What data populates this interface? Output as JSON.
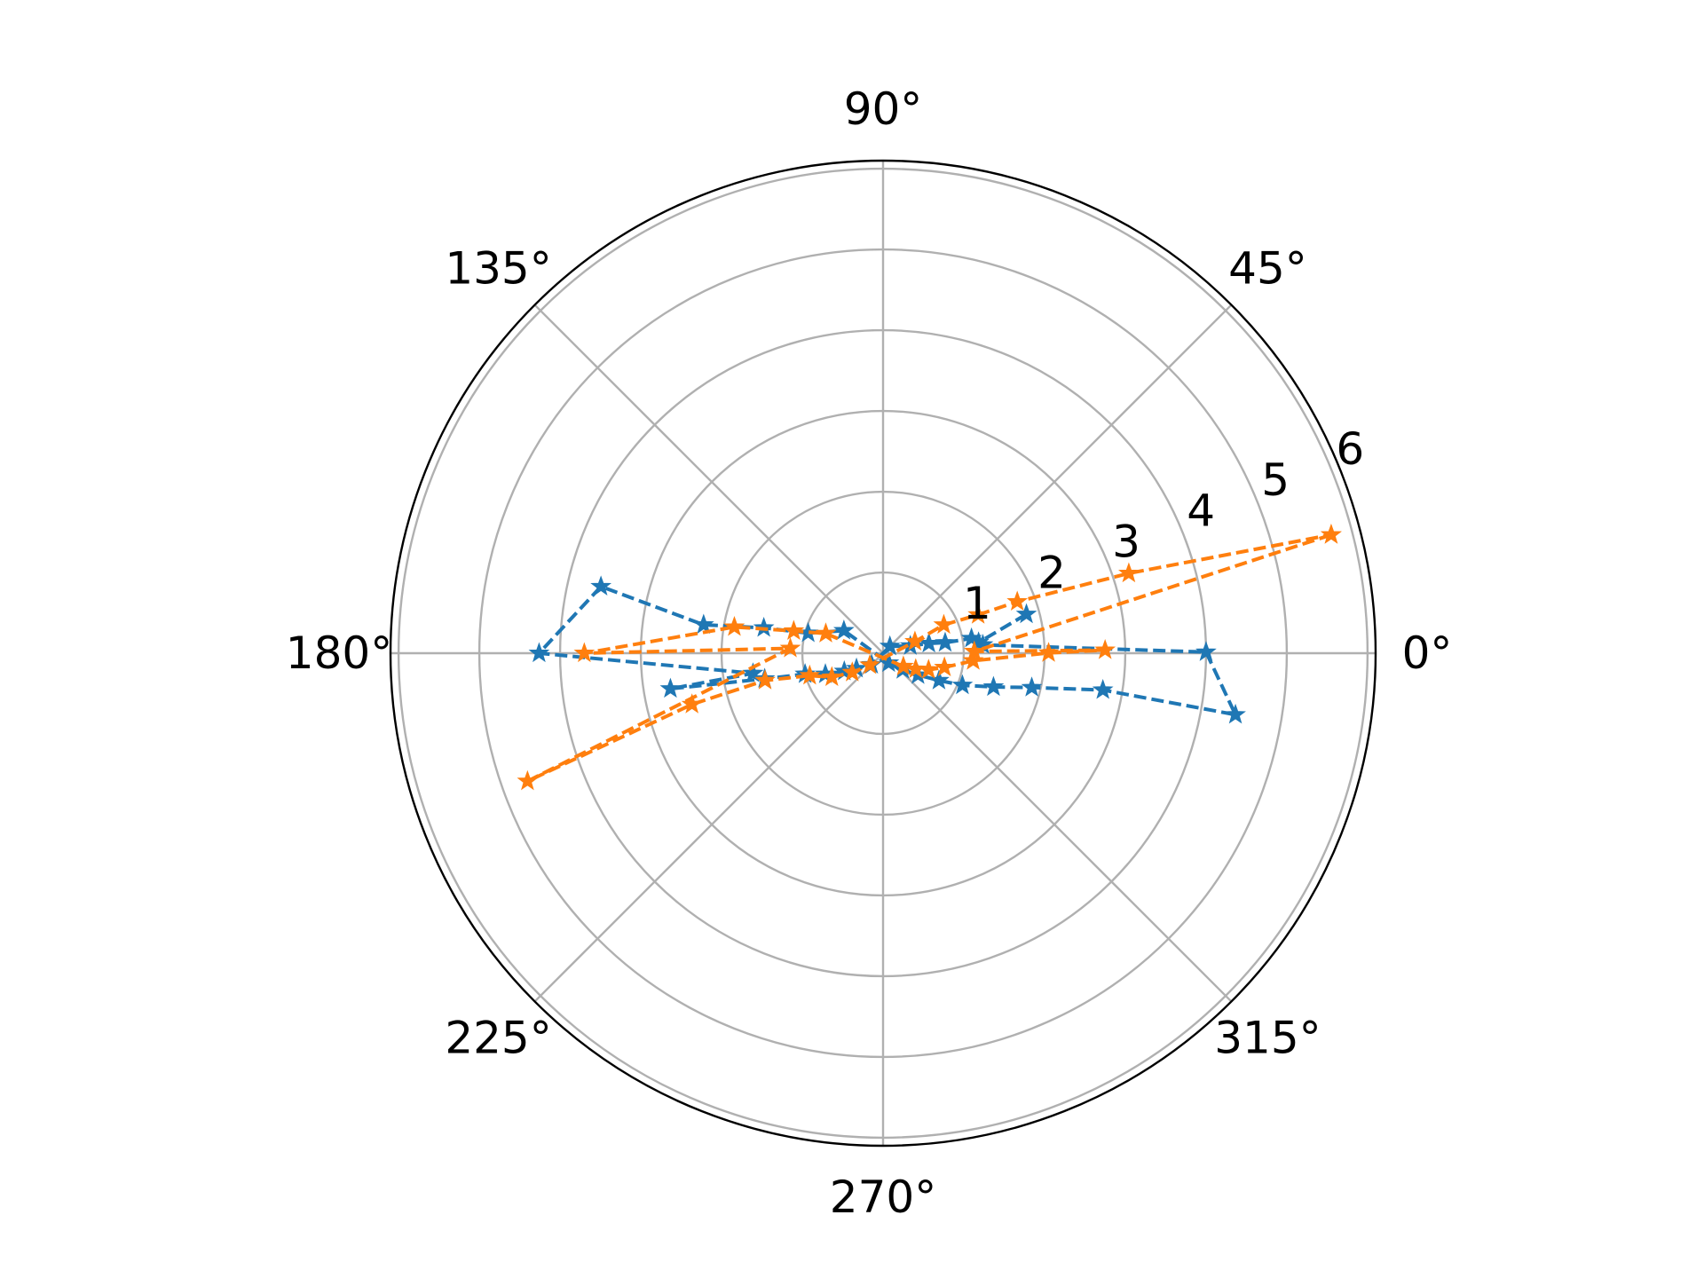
{
  "chart_data": {
    "type": "polar-line",
    "angular_tick_labels": [
      "0°",
      "45°",
      "90°",
      "135°",
      "180°",
      "225°",
      "270°",
      "315°"
    ],
    "angular_ticks_deg": [
      0,
      45,
      90,
      135,
      180,
      225,
      270,
      315
    ],
    "radial_tick_labels": [
      "1",
      "2",
      "3",
      "4",
      "5",
      "6"
    ],
    "radial_ticks": [
      1,
      2,
      3,
      4,
      5,
      6
    ],
    "rlim": [
      0,
      6.1
    ],
    "grid": true,
    "marker": "*",
    "line_style": "dashed",
    "series": [
      {
        "color": "#1f77b4",
        "points": [
          {
            "theta_deg": 15.2,
            "r": 1.84
          },
          {
            "theta_deg": 6.4,
            "r": 1.19
          },
          {
            "theta_deg": 4.8,
            "r": 1.24
          },
          {
            "theta_deg": 0.2,
            "r": 4.0
          },
          {
            "theta_deg": -9.9,
            "r": 4.43
          },
          {
            "theta_deg": -9.5,
            "r": 2.76
          },
          {
            "theta_deg": -13.0,
            "r": 1.89
          },
          {
            "theta_deg": -17.0,
            "r": 1.43
          },
          {
            "theta_deg": -22.0,
            "r": 1.06
          },
          {
            "theta_deg": -26.0,
            "r": 0.77
          },
          {
            "theta_deg": -32.0,
            "r": 0.51
          },
          {
            "theta_deg": -40.0,
            "r": 0.32
          },
          {
            "theta_deg": -60.0,
            "r": 0.14
          },
          {
            "theta_deg": 150.0,
            "r": 0.56
          },
          {
            "theta_deg": 165.0,
            "r": 0.96
          },
          {
            "theta_deg": 168.0,
            "r": 1.51
          },
          {
            "theta_deg": 171.0,
            "r": 2.25
          },
          {
            "theta_deg": 166.7,
            "r": 3.59
          },
          {
            "theta_deg": 180.0,
            "r": 4.26
          },
          {
            "theta_deg": 188.8,
            "r": 1.63
          },
          {
            "theta_deg": 189.5,
            "r": 2.67
          },
          {
            "theta_deg": 192.2,
            "r": 1.5
          },
          {
            "theta_deg": 195.0,
            "r": 1.0
          },
          {
            "theta_deg": 200.0,
            "r": 0.76
          },
          {
            "theta_deg": 205.0,
            "r": 0.53
          },
          {
            "theta_deg": 210.0,
            "r": 0.38
          },
          {
            "theta_deg": 225.0,
            "r": 0.2
          },
          {
            "theta_deg": 45.0,
            "r": 0.12
          },
          {
            "theta_deg": 15.0,
            "r": 0.35
          },
          {
            "theta_deg": 12.0,
            "r": 0.58
          },
          {
            "theta_deg": 9.6,
            "r": 0.78
          },
          {
            "theta_deg": 9.5,
            "r": 1.11
          },
          {
            "theta_deg": 6.4,
            "r": 1.19
          }
        ]
      },
      {
        "color": "#ff7f0e",
        "points": [
          {
            "theta_deg": 14.8,
            "r": 5.74
          },
          {
            "theta_deg": 1.1,
            "r": 1.13
          },
          {
            "theta_deg": 0.8,
            "r": 2.75
          },
          {
            "theta_deg": 0.1,
            "r": 2.05
          },
          {
            "theta_deg": -4.8,
            "r": 1.12
          },
          {
            "theta_deg": -13.0,
            "r": 0.78
          },
          {
            "theta_deg": -20.0,
            "r": 0.6
          },
          {
            "theta_deg": -26.0,
            "r": 0.45
          },
          {
            "theta_deg": -33.0,
            "r": 0.3
          },
          {
            "theta_deg": 161.0,
            "r": 0.75
          },
          {
            "theta_deg": 166.0,
            "r": 1.14
          },
          {
            "theta_deg": 170.0,
            "r": 1.87
          },
          {
            "theta_deg": 180.0,
            "r": 3.7
          },
          {
            "theta_deg": 177.0,
            "r": 1.15
          },
          {
            "theta_deg": 199.8,
            "r": 4.68
          },
          {
            "theta_deg": 195.0,
            "r": 2.45
          },
          {
            "theta_deg": 193.0,
            "r": 1.5
          },
          {
            "theta_deg": 197.0,
            "r": 0.95
          },
          {
            "theta_deg": 205.0,
            "r": 0.7
          },
          {
            "theta_deg": 212.0,
            "r": 0.45
          },
          {
            "theta_deg": 222.0,
            "r": 0.22
          },
          {
            "theta_deg": 20.0,
            "r": 0.42
          },
          {
            "theta_deg": 25.0,
            "r": 0.83
          },
          {
            "theta_deg": 22.0,
            "r": 1.27
          },
          {
            "theta_deg": 21.0,
            "r": 1.78
          },
          {
            "theta_deg": 18.0,
            "r": 3.2
          },
          {
            "theta_deg": 14.8,
            "r": 5.74
          }
        ]
      }
    ]
  }
}
